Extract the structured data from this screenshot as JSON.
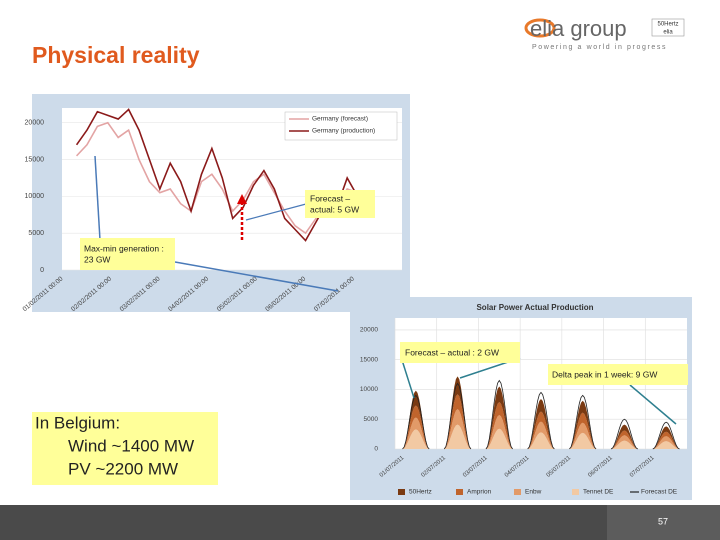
{
  "header": {
    "title": "Physical reality",
    "logo": "elia group",
    "tagline": "Powering a world in progress",
    "partner_logo": [
      "50Hertz",
      "elia"
    ]
  },
  "wind_chart": {
    "type": "line",
    "ylim": [
      0,
      22000
    ],
    "yticks": [
      0,
      5000,
      10000,
      15000,
      20000
    ],
    "x_labels": [
      "01/02/2011 00:00",
      "02/02/2011 00:00",
      "03/02/2011 00:00",
      "04/02/2011 00:00",
      "05/02/2011 00:00",
      "06/02/2011 00:00",
      "07/02/2011 00:00"
    ],
    "series": [
      {
        "name": "Germany (forecast)",
        "color": "#e3a4a4",
        "values": [
          15500,
          17000,
          19500,
          20000,
          18000,
          19000,
          15000,
          12000,
          10500,
          11000,
          9000,
          8000,
          12000,
          13000,
          11000,
          8000,
          9500,
          12000,
          13000,
          10500,
          8000,
          6000,
          5000,
          7000,
          8500,
          9000,
          11000,
          10500,
          8500
        ]
      },
      {
        "name": "Germany (production)",
        "color": "#8b1a1a",
        "values": [
          17000,
          19000,
          21500,
          21000,
          20500,
          21800,
          19000,
          15000,
          11000,
          14500,
          12000,
          8000,
          13000,
          16500,
          12500,
          7000,
          8500,
          11500,
          13500,
          11000,
          7000,
          5500,
          4000,
          6500,
          9000,
          8500,
          12500,
          10000,
          7500
        ]
      }
    ]
  },
  "solar_chart": {
    "type": "stacked-area",
    "title": "Solar Power Actual Production",
    "ylim": [
      0,
      22000
    ],
    "yticks": [
      0,
      5000,
      10000,
      15000,
      20000
    ],
    "x_labels": [
      "01/07/2011",
      "02/07/2011",
      "03/07/2011",
      "04/07/2011",
      "05/07/2011",
      "06/07/2011",
      "07/07/2011"
    ],
    "series": [
      {
        "name": "50Hertz",
        "color": "#7a3a12",
        "values": [
          2500,
          3000,
          2600,
          2100,
          2000,
          1000,
          900
        ]
      },
      {
        "name": "Amprion",
        "color": "#c0642c",
        "values": [
          2000,
          2500,
          2200,
          1700,
          1700,
          800,
          750
        ]
      },
      {
        "name": "Enbw",
        "color": "#e29a68",
        "values": [
          2000,
          2600,
          2300,
          1800,
          1700,
          900,
          850
        ]
      },
      {
        "name": "Tennet DE",
        "color": "#f2c9a3",
        "values": [
          3300,
          4100,
          3400,
          2800,
          2700,
          1400,
          1300
        ]
      },
      {
        "name": "Forecast DE",
        "color": "#222222",
        "values": [
          9000,
          11000,
          11500,
          9500,
          9000,
          5000,
          4500
        ]
      }
    ]
  },
  "annotations": {
    "wind_delta": [
      "Forecast –",
      "actual: 5 GW"
    ],
    "wind_range": [
      "Max-min generation :",
      "23 GW"
    ],
    "solar_delta": "Forecast – actual : 2 GW",
    "solar_peak": "Delta peak in 1 week: 9 GW"
  },
  "belgium": {
    "heading": "In Belgium:",
    "lines": [
      "Wind ~1400 MW",
      "PV ~2200 MW"
    ]
  },
  "footer": {
    "page": "57"
  }
}
